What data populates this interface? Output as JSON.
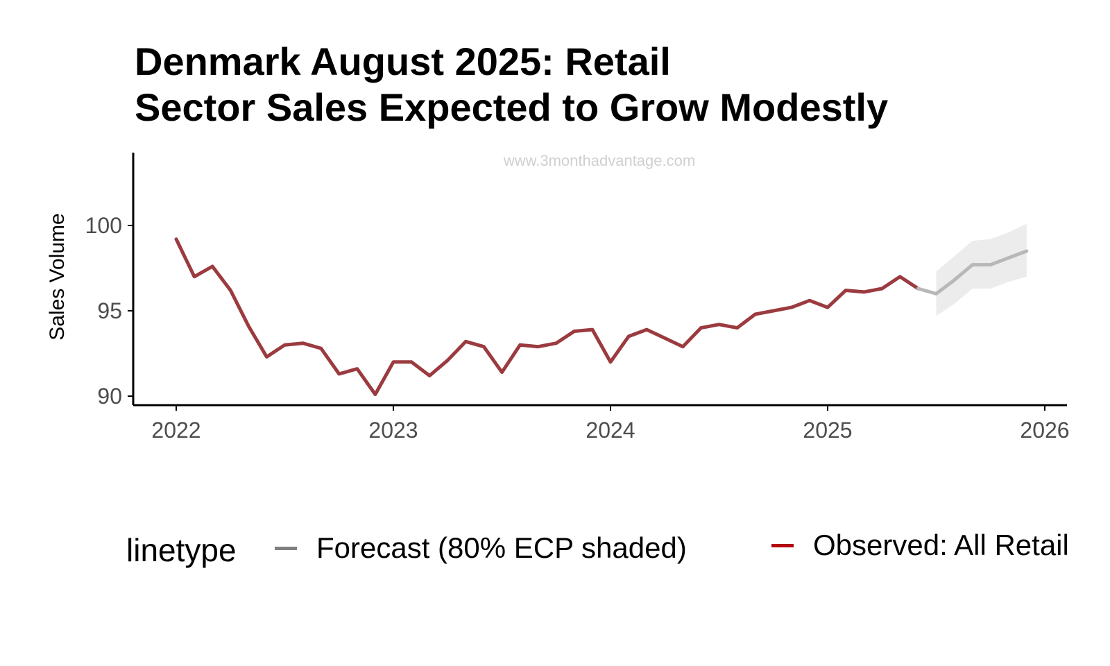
{
  "chart_data": {
    "type": "line",
    "title_lines": [
      "Denmark August 2025: Retail",
      "Sector Sales Expected to Grow Modestly"
    ],
    "watermark": "www.3monthadvantage.com",
    "ylabel": "Sales Volume",
    "xlabel": "",
    "xlim": [
      2021.8,
      2026.0
    ],
    "ylim": [
      89.5,
      104
    ],
    "x_ticks": [
      "2022",
      "2023",
      "2024",
      "2025",
      "2026"
    ],
    "y_ticks": [
      "90",
      "95",
      "100"
    ],
    "grid": false,
    "legend_position": "bottom",
    "legend_title": "linetype",
    "series": [
      {
        "name": "Observed: All Retail",
        "color": "#9b3b3f",
        "x": [
          "2022-01",
          "2022-02",
          "2022-03",
          "2022-04",
          "2022-05",
          "2022-06",
          "2022-07",
          "2022-08",
          "2022-09",
          "2022-10",
          "2022-11",
          "2022-12",
          "2023-01",
          "2023-02",
          "2023-03",
          "2023-04",
          "2023-05",
          "2023-06",
          "2023-07",
          "2023-08",
          "2023-09",
          "2023-10",
          "2023-11",
          "2023-12",
          "2024-01",
          "2024-02",
          "2024-03",
          "2024-04",
          "2024-05",
          "2024-06",
          "2024-07",
          "2024-08",
          "2024-09",
          "2024-10",
          "2024-11",
          "2024-12",
          "2025-01",
          "2025-02",
          "2025-03",
          "2025-04",
          "2025-05",
          "2025-06"
        ],
        "values": [
          99.2,
          97.0,
          97.6,
          96.2,
          94.1,
          92.3,
          93.0,
          93.1,
          92.8,
          91.3,
          91.6,
          90.1,
          92.0,
          92.0,
          91.2,
          92.1,
          93.2,
          92.9,
          91.4,
          93.0,
          92.9,
          93.1,
          93.8,
          93.9,
          92.0,
          93.5,
          93.9,
          93.4,
          92.9,
          94.0,
          94.2,
          94.0,
          94.8,
          95.0,
          95.2,
          95.6,
          95.2,
          96.2,
          96.1,
          96.3,
          97.0,
          96.3
        ]
      },
      {
        "name": "Forecast (80% ECP shaded)",
        "color": "#b8b8b8",
        "x": [
          "2025-06",
          "2025-07",
          "2025-08",
          "2025-09",
          "2025-10",
          "2025-11",
          "2025-12"
        ],
        "values": [
          96.3,
          96.0,
          96.8,
          97.7,
          97.7,
          98.1,
          98.5
        ],
        "lower": [
          null,
          94.7,
          95.4,
          96.3,
          96.3,
          96.7,
          97.0
        ],
        "upper": [
          null,
          97.3,
          98.2,
          99.1,
          99.2,
          99.6,
          100.1
        ]
      }
    ]
  }
}
